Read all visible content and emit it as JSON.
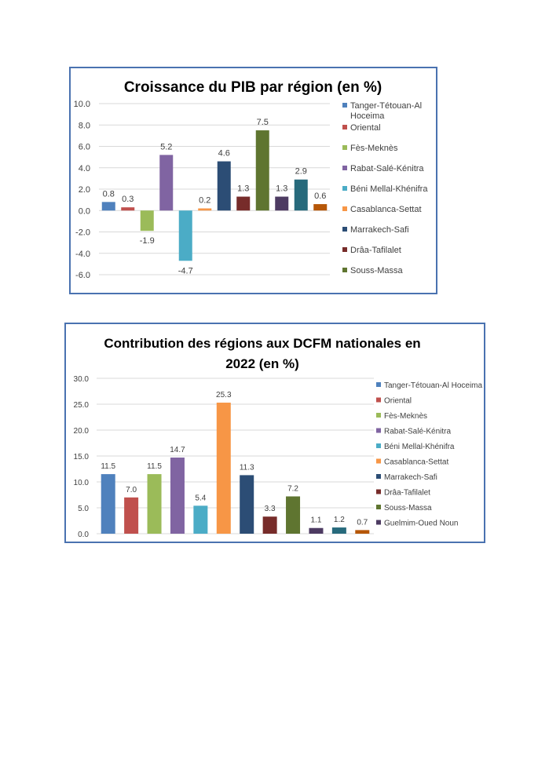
{
  "chart_data": [
    {
      "type": "bar",
      "title": "Croissance du PIB par région (en %)",
      "xlabel": "",
      "ylabel": "",
      "ylim": [
        -6.0,
        10.0
      ],
      "yticks": [
        "10.0",
        "8.0",
        "6.0",
        "4.0",
        "2.0",
        "0.0",
        "-2.0",
        "-4.0",
        "-6.0"
      ],
      "ytick_values": [
        10,
        8,
        6,
        4,
        2,
        0,
        -2,
        -4,
        -6
      ],
      "grid": true,
      "legend_position": "right",
      "legend": [
        "Tanger-Tétouan-Al Hoceima",
        "Oriental",
        "Fès-Meknès",
        "Rabat-Salé-Kénitra",
        "Béni Mellal-Khénifra",
        "Casablanca-Settat",
        "Marrakech-Safi",
        "Drâa-Tafilalet",
        "Souss-Massa"
      ],
      "values": [
        0.8,
        0.3,
        -1.9,
        5.2,
        -4.7,
        0.2,
        4.6,
        1.3,
        7.5,
        1.3,
        2.9,
        0.6
      ],
      "labels": [
        "0.8",
        "0.3",
        "-1.9",
        "5.2",
        "-4.7",
        "0.2",
        "4.6",
        "1.3",
        "7.5",
        "1.3",
        "2.9",
        "0.6"
      ],
      "colors": [
        "#4f81bd",
        "#c0504d",
        "#9bbb59",
        "#8064a2",
        "#4bacc6",
        "#f79646",
        "#2c4d75",
        "#772c2a",
        "#5f7530",
        "#4d3b62",
        "#276a7c",
        "#b65708"
      ]
    },
    {
      "type": "bar",
      "title": "Contribution des régions aux DCFM nationales en 2022 (en %)",
      "title_lines": [
        "Contribution des régions aux DCFM nationales en",
        "2022 (en %)"
      ],
      "xlabel": "",
      "ylabel": "",
      "ylim": [
        0,
        30.0
      ],
      "yticks": [
        "30.0",
        "25.0",
        "20.0",
        "15.0",
        "10.0",
        "5.0",
        "0.0"
      ],
      "ytick_values": [
        30,
        25,
        20,
        15,
        10,
        5,
        0
      ],
      "grid": true,
      "legend_position": "right",
      "legend": [
        "Tanger-Tétouan-Al Hoceima",
        "Oriental",
        "Fès-Meknès",
        "Rabat-Salé-Kénitra",
        "Béni Mellal-Khénifra",
        "Casablanca-Settat",
        "Marrakech-Safi",
        "Drâa-Tafilalet",
        "Souss-Massa",
        "Guelmim-Oued Noun"
      ],
      "values": [
        11.5,
        7.0,
        11.5,
        14.7,
        5.4,
        25.3,
        11.3,
        3.3,
        7.2,
        1.1,
        1.2,
        0.7
      ],
      "labels": [
        "11.5",
        "7.0",
        "11.5",
        "14.7",
        "5.4",
        "25.3",
        "11.3",
        "3.3",
        "7.2",
        "1.1",
        "1.2",
        "0.7"
      ],
      "colors": [
        "#4f81bd",
        "#c0504d",
        "#9bbb59",
        "#8064a2",
        "#4bacc6",
        "#f79646",
        "#2c4d75",
        "#772c2a",
        "#5f7530",
        "#4d3b62",
        "#276a7c",
        "#b65708"
      ]
    }
  ]
}
